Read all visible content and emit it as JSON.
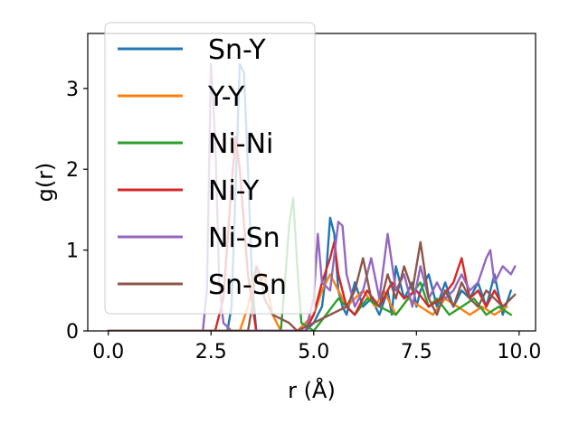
{
  "chart_data": {
    "type": "line",
    "xlabel": "r (Å)",
    "ylabel": "g(r)",
    "xlim": [
      -0.5,
      10.4
    ],
    "ylim": [
      0,
      3.68
    ],
    "x_ticks": [
      "0.0",
      "2.5",
      "5.0",
      "7.5",
      "10.0"
    ],
    "x_tick_values": [
      0.0,
      2.5,
      5.0,
      7.5,
      10.0
    ],
    "y_ticks": [
      "0",
      "1",
      "2",
      "3"
    ],
    "y_tick_values": [
      0,
      1,
      2,
      3
    ],
    "grid": false,
    "legend_position": "top-left",
    "series": [
      {
        "name": "Sn-Y",
        "color": "#1f77b4",
        "x": [
          0,
          2.9,
          3.0,
          3.1,
          3.2,
          3.3,
          3.4,
          3.5,
          3.6,
          4.0,
          4.4,
          4.8,
          5.0,
          5.2,
          5.3,
          5.4,
          5.5,
          5.6,
          5.7,
          5.8,
          6.0,
          6.2,
          6.4,
          6.6,
          6.8,
          6.9,
          7.0,
          7.2,
          7.4,
          7.5,
          7.6,
          7.8,
          8.0,
          8.2,
          8.4,
          8.6,
          8.8,
          9.0,
          9.2,
          9.4,
          9.6,
          9.8
        ],
        "y": [
          0,
          0,
          0.3,
          1.8,
          3.3,
          3.2,
          2.0,
          0.6,
          0,
          0,
          0,
          0,
          0.1,
          0.3,
          0.7,
          1.4,
          1.2,
          0.5,
          0.3,
          0.2,
          0.6,
          0.3,
          0.4,
          0.2,
          0.5,
          0.2,
          0.8,
          0.4,
          0.6,
          0.3,
          0.5,
          0.7,
          0.3,
          0.6,
          0.3,
          0.5,
          0.4,
          0.6,
          0.3,
          0.7,
          0.2,
          0.5
        ]
      },
      {
        "name": "Y-Y",
        "color": "#ff7f0e",
        "x": [
          0,
          3.2,
          3.4,
          3.6,
          3.7,
          3.8,
          4.0,
          4.2,
          4.6,
          5.0,
          5.2,
          5.4,
          5.6,
          5.8,
          6.0,
          6.2,
          6.5,
          6.7,
          7.0,
          7.3,
          7.6,
          7.9,
          8.2,
          8.5,
          8.8,
          9.1,
          9.4,
          9.7
        ],
        "y": [
          0,
          0,
          0.3,
          0.8,
          0.6,
          0.7,
          0.2,
          0,
          0,
          0.2,
          0.5,
          0.7,
          0.5,
          0.3,
          0.4,
          0.5,
          0.3,
          0.5,
          0.2,
          0.4,
          0.3,
          0.2,
          0.4,
          0.3,
          0.2,
          0.3,
          0.2,
          0.3
        ]
      },
      {
        "name": "Ni-Ni",
        "color": "#2ca02c",
        "x": [
          0,
          4.2,
          4.3,
          4.4,
          4.5,
          4.6,
          4.7,
          5.0,
          5.3,
          5.6,
          6.0,
          6.3,
          6.6,
          7.0,
          7.3,
          7.6,
          7.8,
          8.0,
          8.3,
          8.6,
          8.9,
          9.2,
          9.5,
          9.8
        ],
        "y": [
          0,
          0,
          0.6,
          1.3,
          1.65,
          0.8,
          0.1,
          0,
          0.2,
          0.4,
          0.2,
          0.4,
          0.3,
          0.2,
          0.4,
          0.6,
          0.3,
          0.4,
          0.2,
          0.3,
          0.4,
          0.2,
          0.3,
          0.2
        ]
      },
      {
        "name": "Ni-Y",
        "color": "#d62728",
        "x": [
          0,
          2.6,
          2.8,
          3.0,
          3.1,
          3.2,
          3.4,
          3.6,
          4.8,
          5.0,
          5.2,
          5.4,
          5.5,
          5.6,
          5.8,
          6.0,
          6.3,
          6.6,
          6.9,
          7.2,
          7.5,
          7.8,
          8.1,
          8.4,
          8.6,
          8.8,
          9.0,
          9.2,
          9.4,
          9.6,
          9.8
        ],
        "y": [
          0,
          0,
          0.4,
          1.8,
          2.4,
          2.0,
          0.7,
          0,
          0,
          0.2,
          0.6,
          0.9,
          1.1,
          0.7,
          0.3,
          0.2,
          0.5,
          0.3,
          0.6,
          0.4,
          0.5,
          0.3,
          0.4,
          0.6,
          0.9,
          0.4,
          0.5,
          0.3,
          0.5,
          0.3,
          0.4
        ]
      },
      {
        "name": "Ni-Sn",
        "color": "#9467bd",
        "x": [
          0,
          2.3,
          2.4,
          2.5,
          2.6,
          2.7,
          2.8,
          3.0,
          4.8,
          5.0,
          5.1,
          5.2,
          5.4,
          5.6,
          5.7,
          5.8,
          6.0,
          6.2,
          6.4,
          6.6,
          6.8,
          7.0,
          7.2,
          7.4,
          7.6,
          7.8,
          8.0,
          8.2,
          8.4,
          8.6,
          8.8,
          9.0,
          9.2,
          9.3,
          9.4,
          9.6,
          9.8,
          9.9
        ],
        "y": [
          0,
          0,
          0.5,
          3.3,
          2.4,
          0.6,
          0.1,
          0,
          0,
          0.4,
          1.2,
          0.6,
          0.5,
          1.35,
          1.3,
          0.7,
          0.3,
          0.5,
          0.9,
          0.4,
          1.2,
          0.5,
          0.7,
          0.3,
          0.8,
          0.4,
          0.6,
          0.4,
          0.5,
          0.7,
          0.5,
          0.6,
          0.9,
          1.0,
          0.6,
          0.8,
          0.7,
          0.8
        ]
      },
      {
        "name": "Sn-Sn",
        "color": "#8c564b",
        "x": [
          0,
          3.4,
          3.5,
          3.6,
          3.7,
          3.8,
          4.0,
          4.4,
          4.6,
          5.0,
          5.4,
          5.8,
          6.0,
          6.2,
          6.4,
          6.6,
          6.8,
          7.0,
          7.2,
          7.4,
          7.6,
          7.8,
          8.0,
          8.2,
          8.4,
          8.6,
          8.8,
          9.0,
          9.2,
          9.4,
          9.6,
          9.8,
          9.9
        ],
        "y": [
          0,
          0,
          0.3,
          0.8,
          0.7,
          0.4,
          0.2,
          0.1,
          0,
          0.1,
          0.2,
          0.3,
          0.5,
          0.9,
          0.4,
          0.3,
          0.7,
          0.4,
          0.8,
          0.5,
          1.1,
          0.4,
          0.2,
          0.5,
          0.3,
          0.6,
          0.4,
          0.3,
          0.5,
          0.4,
          0.3,
          0.4,
          0.45
        ]
      }
    ]
  }
}
